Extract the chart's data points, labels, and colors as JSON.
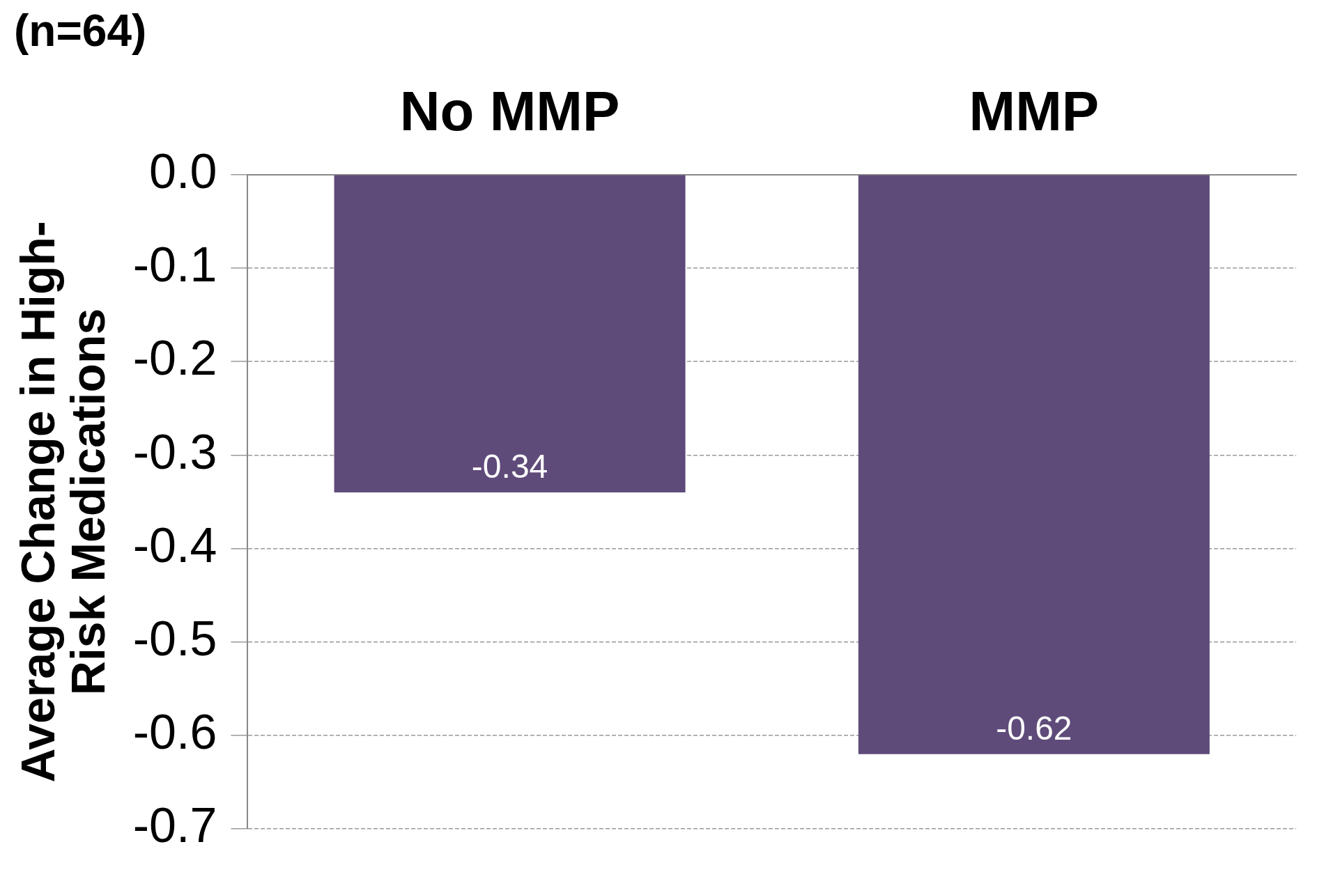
{
  "chart_data": {
    "type": "bar",
    "title": "(n=64)",
    "ylabel": "Average Change in High-Risk Medications",
    "categories": [
      "No MMP",
      "MMP"
    ],
    "values": [
      -0.34,
      -0.62
    ],
    "color": "#5f4b7a",
    "ylim": [
      -0.7,
      0
    ],
    "yticks": [
      {
        "value": 0,
        "label": "0.0"
      },
      -0.1,
      -0.2,
      -0.3,
      -0.4,
      -0.5,
      -0.6,
      -0.7
    ],
    "grid": "y",
    "data_labels": true,
    "legend": false
  }
}
